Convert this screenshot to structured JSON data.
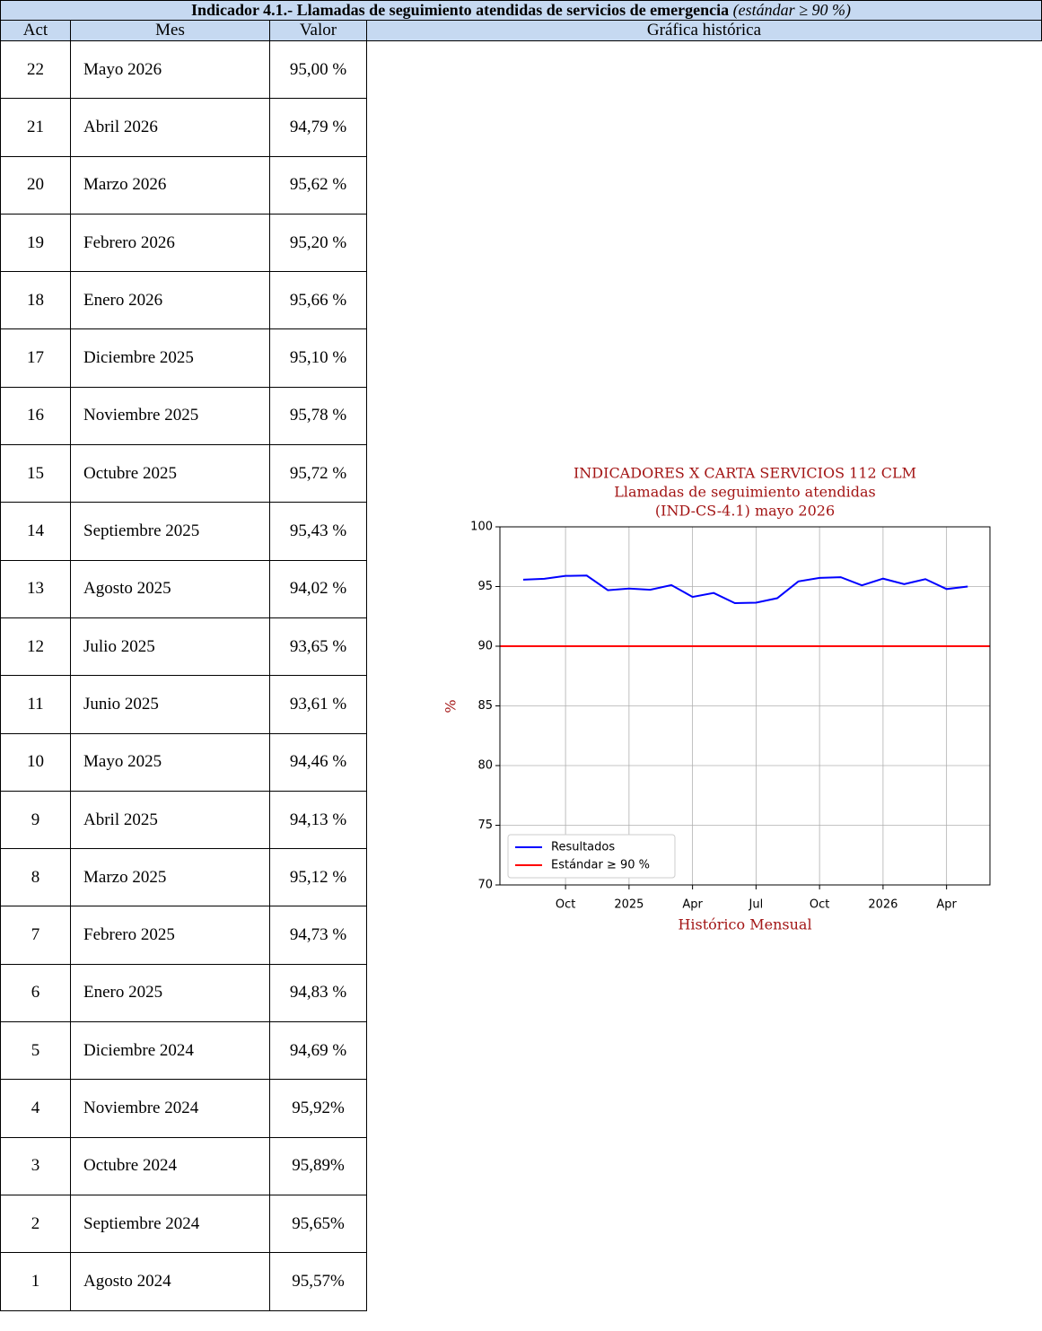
{
  "header": {
    "title": "Indicador 4.1.- Llamadas de seguimiento atendidas de servicios de emergencia",
    "subtitle": "(estándar ≥ 90 %)"
  },
  "table": {
    "columns": [
      "Act",
      "Mes",
      "Valor",
      "Gráfica histórica"
    ],
    "rows": [
      [
        22,
        "Mayo 2026",
        "95,00 %"
      ],
      [
        21,
        "Abril 2026",
        "94,79 %"
      ],
      [
        20,
        "Marzo 2026",
        "95,62 %"
      ],
      [
        19,
        "Febrero 2026",
        "95,20 %"
      ],
      [
        18,
        "Enero 2026",
        "95,66 %"
      ],
      [
        17,
        "Diciembre 2025",
        "95,10 %"
      ],
      [
        16,
        "Noviembre 2025",
        "95,78 %"
      ],
      [
        15,
        "Octubre 2025",
        "95,72 %"
      ],
      [
        14,
        "Septiembre 2025",
        "95,43 %"
      ],
      [
        13,
        "Agosto 2025",
        "94,02 %"
      ],
      [
        12,
        "Julio 2025",
        "93,65 %"
      ],
      [
        11,
        "Junio 2025",
        "93,61 %"
      ],
      [
        10,
        "Mayo 2025",
        "94,46 %"
      ],
      [
        9,
        "Abril 2025",
        "94,13 %"
      ],
      [
        8,
        "Marzo 2025",
        "95,12 %"
      ],
      [
        7,
        "Febrero 2025",
        "94,73 %"
      ],
      [
        6,
        "Enero 2025",
        "94,83 %"
      ],
      [
        5,
        "Diciembre 2024",
        "94,69 %"
      ],
      [
        4,
        "Noviembre 2024",
        "95,92%"
      ],
      [
        3,
        "Octubre 2024",
        "95,89%"
      ],
      [
        2,
        "Septiembre 2024",
        "95,65%"
      ],
      [
        1,
        "Agosto 2024",
        "95,57%"
      ]
    ]
  },
  "chart_data": {
    "type": "line",
    "title": [
      "INDICADORES X CARTA SERVICIOS 112 CLM",
      "Llamadas de seguimiento atendidas",
      "(IND-CS-4.1) mayo 2026"
    ],
    "xlabel": "Histórico Mensual",
    "ylabel": "%",
    "x": [
      0,
      1,
      2,
      3,
      4,
      5,
      6,
      7,
      8,
      9,
      10,
      11,
      12,
      13,
      14,
      15,
      16,
      17,
      18,
      19,
      20,
      21
    ],
    "series": [
      {
        "name": "Resultados",
        "color": "#0000ff",
        "values": [
          95.57,
          95.65,
          95.89,
          95.92,
          94.69,
          94.83,
          94.73,
          95.12,
          94.13,
          94.46,
          93.61,
          93.65,
          94.02,
          95.43,
          95.72,
          95.78,
          95.1,
          95.66,
          95.2,
          95.62,
          94.79,
          95.0
        ]
      }
    ],
    "reference_line": {
      "name": "Estándar ≥ 90 %",
      "value": 90,
      "color": "#ff0000"
    },
    "xlim": [
      -1.1,
      22.05
    ],
    "xticks": [
      {
        "value": 2,
        "label": "Oct"
      },
      {
        "value": 5,
        "label": "2025"
      },
      {
        "value": 8,
        "label": "Apr"
      },
      {
        "value": 11,
        "label": "Jul"
      },
      {
        "value": 14,
        "label": "Oct"
      },
      {
        "value": 17,
        "label": "2026"
      },
      {
        "value": 20,
        "label": "Apr"
      }
    ],
    "ylim": [
      70,
      100
    ],
    "yticks": [
      70,
      75,
      80,
      85,
      90,
      95,
      100
    ],
    "grid": true,
    "legend": "lower left"
  }
}
